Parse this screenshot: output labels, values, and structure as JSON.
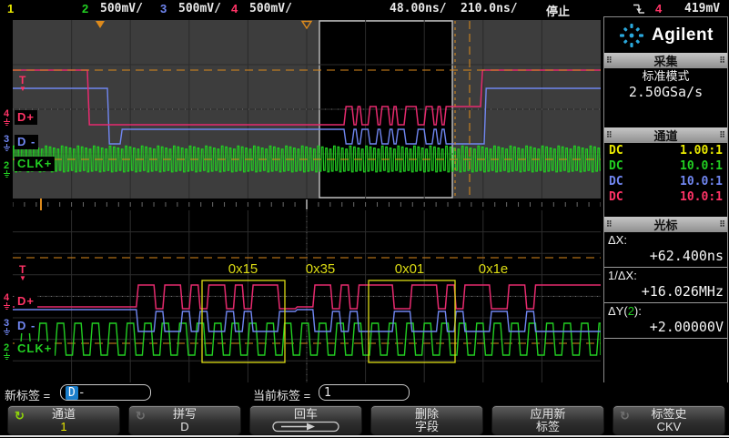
{
  "colors": {
    "ch1": "#e8e800",
    "ch2": "#22cf22",
    "ch3": "#7086f0",
    "ch4": "#ff3366",
    "trace_dplus": "#e62a6e",
    "cursor_orange": "#dd8a1c",
    "annotation_yellow": "#dcdc14",
    "logo_blue": "#2aa8dc",
    "selection_blue": "#1a7ecb",
    "softkey_green": "#8fd40a",
    "window_outer_bg": "#3d3d3d"
  },
  "status_bar": {
    "ch1_num": "1",
    "ch2_num": "2",
    "ch2_scale": "500mV/",
    "ch3_num": "3",
    "ch3_scale": "500mV/",
    "ch4_num": "4",
    "ch4_scale": "500mV/",
    "timebase_zoom": "48.00ns/",
    "timebase_main": "210.0ns/",
    "run_state": "停止",
    "trigger_icon": "falling-edge",
    "trigger_source": "4",
    "trigger_level": "419mV"
  },
  "scope": {
    "trace_labels": {
      "dplus": "D+",
      "dminus": "D -",
      "clk": "CLK+"
    },
    "annotations": [
      "0x15",
      "0x35",
      "0x01",
      "0x1e"
    ],
    "trigger_marker": "T",
    "trigger_marker_arrow": "▼",
    "channel_numbers": [
      "4",
      "3",
      "2"
    ]
  },
  "right_panel": {
    "brand": "Agilent",
    "acquisition": {
      "title": "采集",
      "mode": "标准模式",
      "sample_rate": "2.50GSa/s"
    },
    "channels": {
      "title": "通道",
      "rows": [
        {
          "coupling": "DC",
          "probe": "1.00:1"
        },
        {
          "coupling": "DC",
          "probe": "10.0:1"
        },
        {
          "coupling": "DC",
          "probe": "10.0:1"
        },
        {
          "coupling": "DC",
          "probe": "10.0:1"
        }
      ]
    },
    "cursors": {
      "title": "光标",
      "dx_label": "ΔX:",
      "dx_value": "+62.400ns",
      "inv_label": "1/ΔX:",
      "inv_value": "+16.026MHz",
      "dy_prefix": "ΔY(",
      "dy_channel": "2",
      "dy_suffix": "):",
      "dy_value": "+2.00000V"
    }
  },
  "label_bar": {
    "new_label_prefix": "新标签 =",
    "new_label_selected": "D",
    "new_label_rest": "-",
    "current_label_prefix": "当前标签 =",
    "current_label_value": "1"
  },
  "softkeys": [
    {
      "line1": "通道",
      "line2": "1",
      "icon": "cycle"
    },
    {
      "line1": "拼写",
      "line2": "D",
      "icon": "cycle-dim"
    },
    {
      "line1": "回车",
      "line2": "",
      "icon": "enter-arrow"
    },
    {
      "line1": "删除",
      "line2": "字段",
      "icon": ""
    },
    {
      "line1": "应用新",
      "line2": "标签",
      "icon": ""
    },
    {
      "line1": "标签史",
      "line2": "CKV",
      "icon": "cycle-dim"
    }
  ]
}
